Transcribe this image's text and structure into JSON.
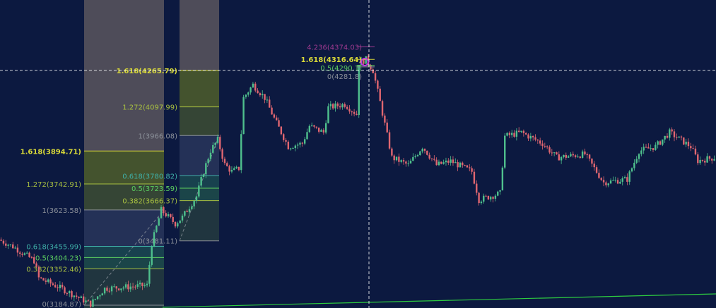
{
  "chart_data": {
    "type": "candlestick",
    "ylim": [
      3172,
      4590
    ],
    "grid": false,
    "colors": {
      "background": "#0c1940",
      "up": "#4fc08d",
      "down": "#e06670",
      "trendline": "#2ecc40",
      "crosshair": "#ffffff",
      "marker": "#c040e0"
    },
    "price_path": [
      [
        0,
        3487
      ],
      [
        6,
        3455
      ],
      [
        15,
        3390
      ],
      [
        17,
        3310
      ],
      [
        27,
        3260
      ],
      [
        39,
        3190
      ],
      [
        45,
        3262
      ],
      [
        63,
        3276
      ],
      [
        65,
        3468
      ],
      [
        69,
        3623
      ],
      [
        75,
        3560
      ],
      [
        78,
        3590
      ],
      [
        84,
        3686
      ],
      [
        87,
        3800
      ],
      [
        90,
        3897
      ],
      [
        93,
        3946
      ],
      [
        96,
        3832
      ],
      [
        99,
        3800
      ],
      [
        102,
        3815
      ],
      [
        104,
        4140
      ],
      [
        108,
        4200
      ],
      [
        113,
        4140
      ],
      [
        117,
        4045
      ],
      [
        123,
        3915
      ],
      [
        129,
        3930
      ],
      [
        132,
        4010
      ],
      [
        138,
        3980
      ],
      [
        140,
        4095
      ],
      [
        147,
        4110
      ],
      [
        152,
        4064
      ],
      [
        153,
        4300
      ],
      [
        156,
        4316
      ],
      [
        159,
        4265
      ],
      [
        162,
        4120
      ],
      [
        167,
        3865
      ],
      [
        174,
        3830
      ],
      [
        180,
        3915
      ],
      [
        186,
        3830
      ],
      [
        192,
        3848
      ],
      [
        201,
        3800
      ],
      [
        204,
        3670
      ],
      [
        213,
        3700
      ],
      [
        215,
        3963
      ],
      [
        222,
        3980
      ],
      [
        231,
        3930
      ],
      [
        237,
        3865
      ],
      [
        249,
        3880
      ],
      [
        257,
        3750
      ],
      [
        267,
        3765
      ],
      [
        272,
        3895
      ],
      [
        279,
        3915
      ],
      [
        285,
        3980
      ],
      [
        294,
        3915
      ],
      [
        297,
        3850
      ],
      [
        304,
        3865
      ]
    ],
    "fib_retracements": [
      {
        "levels": [
          {
            "ratio": "0",
            "price": "3184.87",
            "text": "0(3184.87)"
          },
          {
            "ratio": "0.382",
            "price": "3352.46",
            "text": "0.382(3352.46)"
          },
          {
            "ratio": "0.5",
            "price": "3404.23",
            "text": "0.5(3404.23)"
          },
          {
            "ratio": "0.618",
            "price": "3455.99",
            "text": "0.618(3455.99)"
          },
          {
            "ratio": "1",
            "price": "3623.58",
            "text": "1(3623.58)"
          },
          {
            "ratio": "1.272",
            "price": "3742.91",
            "text": "1.272(3742.91)"
          },
          {
            "ratio": "1.618",
            "price": "3894.71",
            "text": "1.618(3894.71)"
          }
        ]
      },
      {
        "levels": [
          {
            "ratio": "0",
            "price": "3481.11",
            "text": "0(3481.11)"
          },
          {
            "ratio": "0.382",
            "price": "3666.37",
            "text": "0.382(3666.37)"
          },
          {
            "ratio": "0.5",
            "price": "3723.59",
            "text": "0.5(3723.59)"
          },
          {
            "ratio": "0.618",
            "price": "3780.82",
            "text": "0.618(3780.82)"
          },
          {
            "ratio": "1",
            "price": "3966.08",
            "text": "1(3966.08)"
          },
          {
            "ratio": "1.272",
            "price": "4097.99",
            "text": "1.272(4097.99)"
          },
          {
            "ratio": "1.618",
            "price": "4265.79",
            "text": "1.618(4265.79)"
          }
        ]
      },
      {
        "levels": [
          {
            "ratio": "4.236",
            "price": "4374.03",
            "text": "4.236(4374.03)"
          },
          {
            "ratio": "1.618",
            "price": "4316.64",
            "text": "1.618(4316.64)"
          },
          {
            "ratio": "0.5",
            "price": "4290",
            "text": "0.5(4290.1)"
          },
          {
            "ratio": "0",
            "price": "4282",
            "text": "0(4281.8)"
          }
        ]
      }
    ],
    "crosshair_price": 4265.79
  }
}
